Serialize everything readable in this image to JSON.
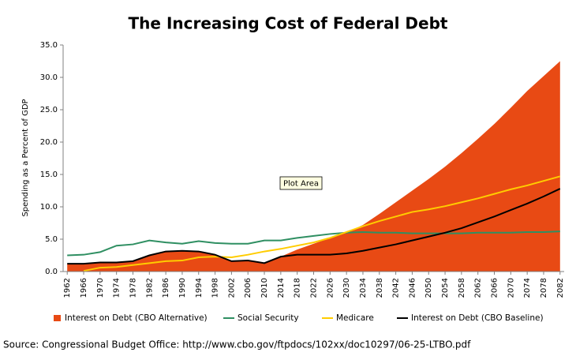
{
  "chart_data": {
    "type": "line",
    "title": "The Increasing Cost of Federal Debt",
    "ylabel": "Spending as a Percent of GDP",
    "source": "Source: Congressional Budget Office: http://www.cbo.gov/ftpdocs/102xx/doc10297/06-25-LTBO.pdf",
    "tooltip": "Plot Area",
    "x": [
      1962,
      1966,
      1970,
      1974,
      1978,
      1982,
      1986,
      1990,
      1994,
      1998,
      2002,
      2006,
      2010,
      2014,
      2018,
      2022,
      2026,
      2030,
      2034,
      2038,
      2042,
      2046,
      2050,
      2054,
      2058,
      2062,
      2066,
      2070,
      2074,
      2078,
      2082
    ],
    "xlim": [
      1961,
      2083
    ],
    "xticks": [
      1962,
      1966,
      1970,
      1974,
      1978,
      1982,
      1986,
      1990,
      1994,
      1998,
      2002,
      2006,
      2010,
      2014,
      2018,
      2022,
      2026,
      2030,
      2034,
      2038,
      2042,
      2046,
      2050,
      2054,
      2058,
      2062,
      2066,
      2070,
      2074,
      2078,
      2082
    ],
    "ylim": [
      0,
      35
    ],
    "yticks": [
      {
        "value": 0,
        "label": "0.0"
      },
      {
        "value": 5,
        "label": "5.0"
      },
      {
        "value": 10,
        "label": "10.0"
      },
      {
        "value": 15,
        "label": "15.0"
      },
      {
        "value": 20,
        "label": "20.0"
      },
      {
        "value": 25,
        "label": "25.0"
      },
      {
        "value": 30,
        "label": "30.0"
      },
      {
        "value": 35,
        "label": "35.0"
      }
    ],
    "grid": false,
    "legend": "bottom",
    "series": [
      {
        "name": "Interest on Debt (CBO Alternative)",
        "type": "area",
        "color": "#e84a14",
        "values": [
          1.2,
          1.2,
          1.4,
          1.4,
          1.6,
          2.5,
          3.1,
          3.2,
          3.1,
          2.6,
          1.6,
          1.7,
          1.3,
          2.3,
          3.4,
          4.3,
          5.2,
          6.0,
          7.2,
          8.9,
          10.7,
          12.5,
          14.3,
          16.2,
          18.3,
          20.5,
          22.8,
          25.3,
          27.9,
          30.2,
          32.5
        ]
      },
      {
        "name": "Social Security",
        "type": "line",
        "color": "#2f8f62",
        "values": [
          2.5,
          2.6,
          3.0,
          4.0,
          4.2,
          4.8,
          4.5,
          4.3,
          4.7,
          4.4,
          4.3,
          4.3,
          4.8,
          4.8,
          5.2,
          5.5,
          5.8,
          6.0,
          6.1,
          6.0,
          6.0,
          5.9,
          5.9,
          5.9,
          5.9,
          6.0,
          6.0,
          6.0,
          6.1,
          6.1,
          6.2
        ]
      },
      {
        "name": "Medicare",
        "type": "line",
        "color": "#ffcc00",
        "values": [
          null,
          0.1,
          0.6,
          0.7,
          1.0,
          1.3,
          1.6,
          1.7,
          2.2,
          2.3,
          2.2,
          2.6,
          3.1,
          3.5,
          4.0,
          4.5,
          5.2,
          6.1,
          7.0,
          7.8,
          8.5,
          9.2,
          9.6,
          10.1,
          10.7,
          11.3,
          12.0,
          12.7,
          13.3,
          14.0,
          14.7
        ]
      },
      {
        "name": "Interest on Debt (CBO Baseline)",
        "type": "line",
        "color": "#000000",
        "values": [
          1.2,
          1.2,
          1.4,
          1.4,
          1.6,
          2.5,
          3.1,
          3.2,
          3.1,
          2.6,
          1.6,
          1.7,
          1.3,
          2.3,
          2.6,
          2.6,
          2.6,
          2.8,
          3.2,
          3.7,
          4.2,
          4.8,
          5.4,
          6.0,
          6.7,
          7.6,
          8.5,
          9.5,
          10.5,
          11.6,
          12.8
        ]
      }
    ]
  }
}
